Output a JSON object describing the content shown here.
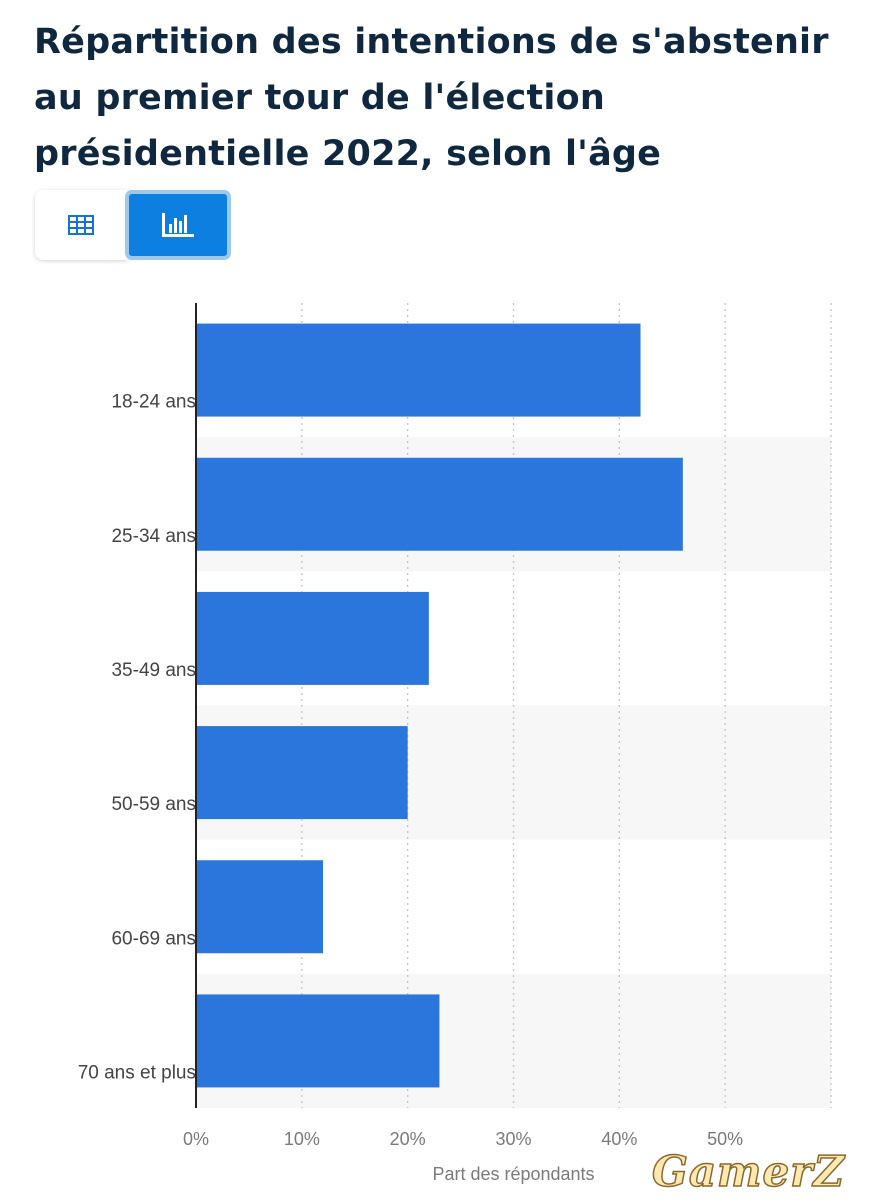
{
  "title": "Répartition des intentions de s'abstenir au premier tour de l'élection présidentielle 2022, selon l'âge",
  "view_toggle": {
    "table_icon": "table-icon",
    "chart_icon": "bar-chart-icon",
    "active": "chart"
  },
  "chart_data": {
    "type": "bar",
    "orientation": "horizontal",
    "categories": [
      "18-24 ans",
      "25-34 ans",
      "35-49 ans",
      "50-59 ans",
      "60-69 ans",
      "70 ans et plus"
    ],
    "values": [
      42,
      46,
      22,
      20,
      12,
      23
    ],
    "unit": "%",
    "xlabel": "Part des répondants",
    "xlim": [
      0,
      60
    ],
    "xticks": [
      0,
      10,
      20,
      30,
      40,
      50
    ],
    "xtick_labels": [
      "0%",
      "10%",
      "20%",
      "30%",
      "40%",
      "50%"
    ],
    "grid": "vertical-dotted",
    "bar_color": "#2a76dd",
    "band_color": "#f7f7f7"
  },
  "watermark": "GamerZ"
}
